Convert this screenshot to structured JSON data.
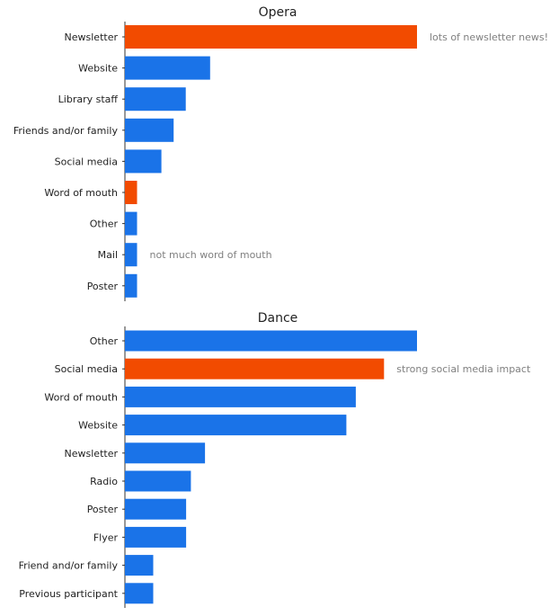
{
  "colors": {
    "default_bar": "#1a73e8",
    "highlight_bar": "#f24b00",
    "axis": "#333333",
    "annotation_text": "#808080",
    "text": "#222222"
  },
  "chart_data": [
    {
      "type": "bar",
      "orientation": "horizontal",
      "title": "Opera",
      "categories": [
        "Newsletter",
        "Website",
        "Library staff",
        "Friends and/or family",
        "Social media",
        "Word of mouth",
        "Other",
        "Mail",
        "Poster"
      ],
      "values": [
        24,
        7,
        5,
        4,
        3,
        1,
        1,
        1,
        1
      ],
      "highlighted": [
        "Newsletter",
        "Word of mouth"
      ],
      "xlim": [
        0,
        24
      ],
      "x_axis_visible": false,
      "grid": false,
      "annotations": [
        {
          "category": "Newsletter",
          "text": "lots of newsletter news!"
        },
        {
          "category": "Mail",
          "text": "not much word of mouth"
        }
      ]
    },
    {
      "type": "bar",
      "orientation": "horizontal",
      "title": "Dance",
      "categories": [
        "Other",
        "Social media",
        "Word of mouth",
        "Website",
        "Newsletter",
        "Radio",
        "Poster",
        "Flyer",
        "Friend and/or family",
        "Previous participant"
      ],
      "values": [
        31,
        27.5,
        24.5,
        23.5,
        8.5,
        7,
        6.5,
        6.5,
        3,
        3
      ],
      "highlighted": [
        "Social media"
      ],
      "xlim": [
        0,
        31
      ],
      "x_axis_visible": false,
      "grid": false,
      "annotations": [
        {
          "category": "Social media",
          "text": "strong social media impact"
        }
      ]
    }
  ]
}
